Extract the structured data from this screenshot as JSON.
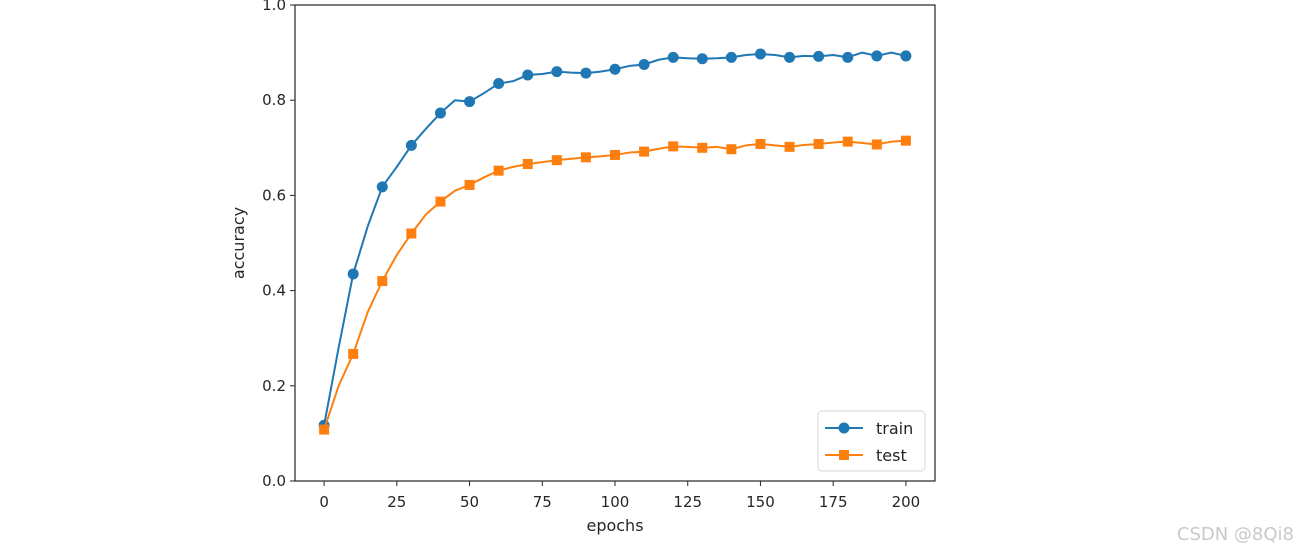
{
  "chart_data": {
    "type": "line",
    "title": "",
    "xlabel": "epochs",
    "ylabel": "accuracy",
    "xlim": [
      -10,
      210
    ],
    "ylim": [
      0.0,
      1.0
    ],
    "xticks": [
      0,
      25,
      50,
      75,
      100,
      125,
      150,
      175,
      200
    ],
    "yticks": [
      0.0,
      0.2,
      0.4,
      0.6,
      0.8,
      1.0
    ],
    "ytick_labels": [
      "0.0",
      "0.2",
      "0.4",
      "0.6",
      "0.8",
      "1.0"
    ],
    "grid": false,
    "legend_position": "bottom-right",
    "series": [
      {
        "name": "train",
        "color": "#1f77b4",
        "marker": "circle",
        "x": [
          0,
          5,
          10,
          15,
          20,
          25,
          30,
          35,
          40,
          45,
          50,
          55,
          60,
          65,
          70,
          75,
          80,
          85,
          90,
          95,
          100,
          105,
          110,
          115,
          120,
          125,
          130,
          135,
          140,
          145,
          150,
          155,
          160,
          165,
          170,
          175,
          180,
          185,
          190,
          195,
          200
        ],
        "y": [
          0.117,
          0.28,
          0.435,
          0.535,
          0.618,
          0.66,
          0.705,
          0.74,
          0.773,
          0.8,
          0.797,
          0.815,
          0.835,
          0.84,
          0.853,
          0.855,
          0.86,
          0.858,
          0.857,
          0.86,
          0.865,
          0.872,
          0.875,
          0.885,
          0.89,
          0.888,
          0.887,
          0.888,
          0.89,
          0.895,
          0.897,
          0.895,
          0.89,
          0.893,
          0.892,
          0.895,
          0.89,
          0.9,
          0.893,
          0.9,
          0.893
        ]
      },
      {
        "name": "test",
        "color": "#ff7f0e",
        "marker": "square",
        "x": [
          0,
          5,
          10,
          15,
          20,
          25,
          30,
          35,
          40,
          45,
          50,
          55,
          60,
          65,
          70,
          75,
          80,
          85,
          90,
          95,
          100,
          105,
          110,
          115,
          120,
          125,
          130,
          135,
          140,
          145,
          150,
          155,
          160,
          165,
          170,
          175,
          180,
          185,
          190,
          195,
          200
        ],
        "y": [
          0.108,
          0.2,
          0.267,
          0.355,
          0.42,
          0.475,
          0.52,
          0.56,
          0.587,
          0.61,
          0.622,
          0.638,
          0.652,
          0.66,
          0.666,
          0.67,
          0.674,
          0.677,
          0.68,
          0.682,
          0.685,
          0.69,
          0.692,
          0.698,
          0.703,
          0.702,
          0.7,
          0.702,
          0.697,
          0.705,
          0.708,
          0.705,
          0.702,
          0.706,
          0.708,
          0.711,
          0.713,
          0.71,
          0.707,
          0.713,
          0.715
        ]
      }
    ],
    "marker_every": 10
  },
  "watermark": "CSDN @8Qi8"
}
